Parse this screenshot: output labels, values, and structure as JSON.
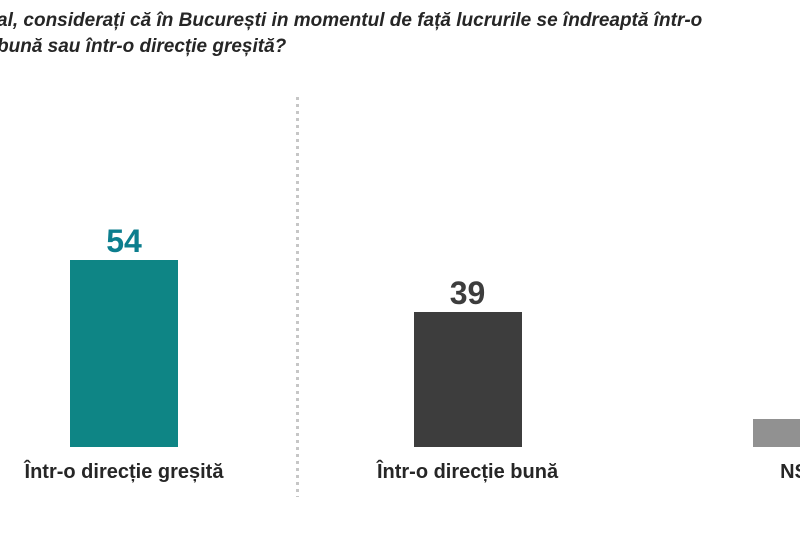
{
  "title": {
    "line1": "al, considerați că în București in momentul de față lucrurile se îndreaptă într-o",
    "line2": "bună sau într-o direcție greșită?"
  },
  "colors": {
    "teal": "#0e8585",
    "dark_gray": "#3d3d3d",
    "light_gray": "#919191",
    "text": "#262626",
    "divider_dots": "#c6c6c6",
    "background": "#ffffff"
  },
  "chart_data": {
    "type": "bar",
    "title": "al, considerați că în București in momentul de față lucrurile se îndreaptă într-o bună sau într-o direcție greșită? (question text cropped at left edge)",
    "categories": [
      "Într-o direcție greșită",
      "Într-o direcție bună",
      "NS"
    ],
    "values": [
      54,
      39,
      8
    ],
    "value_labels": [
      "54",
      "39",
      ""
    ],
    "bar_colors": [
      "#0e8585",
      "#3d3d3d",
      "#919191"
    ],
    "value_label_colors": [
      "#0c7e8e",
      "#3d3d3d",
      "#919191"
    ],
    "xlabel": "",
    "ylabel": "",
    "ylim": [
      0,
      60
    ],
    "grid": false,
    "legend": false,
    "axes_shown": false,
    "notes": "Third bar and its label (NS...) are cut off at the right image edge; no numeric label visible for it (value 8 estimated from bar height). A vertical dotted divider separates the first bar from the second."
  }
}
